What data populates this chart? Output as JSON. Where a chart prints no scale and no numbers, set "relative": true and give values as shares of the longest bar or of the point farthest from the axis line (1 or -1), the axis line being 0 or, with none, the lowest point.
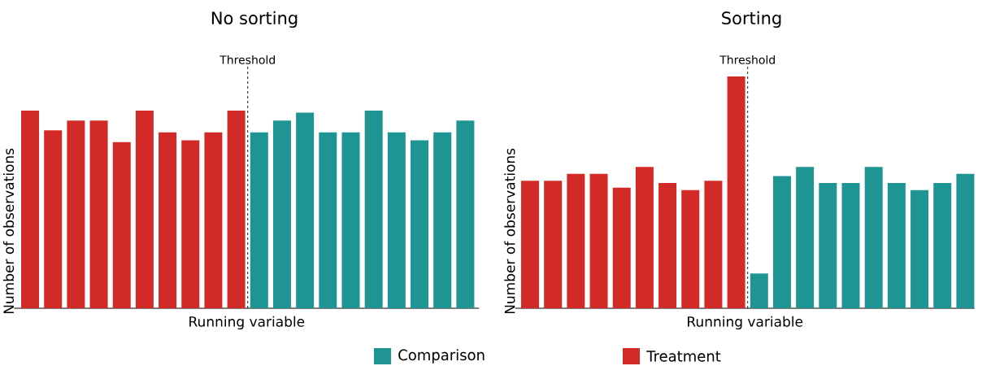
{
  "chart_data": [
    {
      "type": "bar",
      "title": "No sorting",
      "xlabel": "Running variable",
      "ylabel": "Number of observations",
      "relative": true,
      "stacked": true,
      "legend": "bottom",
      "categories": [
        null,
        null,
        null,
        null,
        null,
        null,
        null,
        null,
        null,
        null,
        null,
        null,
        null,
        null,
        null,
        null,
        null,
        null,
        null,
        null
      ],
      "series": [
        {
          "name": "Comparison",
          "color": "#1f9593",
          "values": [
            0,
            0,
            0,
            0,
            0,
            0,
            0,
            0,
            0,
            0,
            0.89,
            0.95,
            0.99,
            0.89,
            0.89,
            1,
            0.89,
            0.85,
            0.89,
            0.95
          ]
        },
        {
          "name": "Treatment",
          "color": "#d22b27",
          "values": [
            1,
            0.9,
            0.95,
            0.95,
            0.84,
            1,
            0.89,
            0.85,
            0.89,
            1,
            0,
            0,
            0,
            0,
            0,
            0,
            0,
            0,
            0,
            0
          ]
        }
      ],
      "annotations": [
        "Threshold"
      ]
    },
    {
      "type": "bar",
      "title": "Sorting",
      "xlabel": "Running variable",
      "ylabel": "Number of observations",
      "relative": true,
      "stacked": true,
      "categories": [
        null,
        null,
        null,
        null,
        null,
        null,
        null,
        null,
        null,
        null,
        null,
        null,
        null,
        null,
        null,
        null,
        null,
        null,
        null,
        null
      ],
      "series": [
        {
          "color": "#1f9593",
          "values": [
            0,
            0,
            0,
            0,
            0,
            0,
            0,
            0,
            0,
            0,
            0.15,
            0.57,
            0.61,
            0.54,
            0.54,
            0.61,
            0.54,
            0.51,
            0.54,
            0.58
          ]
        },
        {
          "color": "#d22b27",
          "values": [
            0.55,
            0.55,
            0.58,
            0.58,
            0.52,
            0.61,
            0.54,
            0.51,
            0.55,
            1,
            0,
            0,
            0,
            0,
            0,
            0,
            0,
            0,
            0,
            0
          ]
        }
      ],
      "annotations": [
        "Threshold"
      ]
    }
  ]
}
